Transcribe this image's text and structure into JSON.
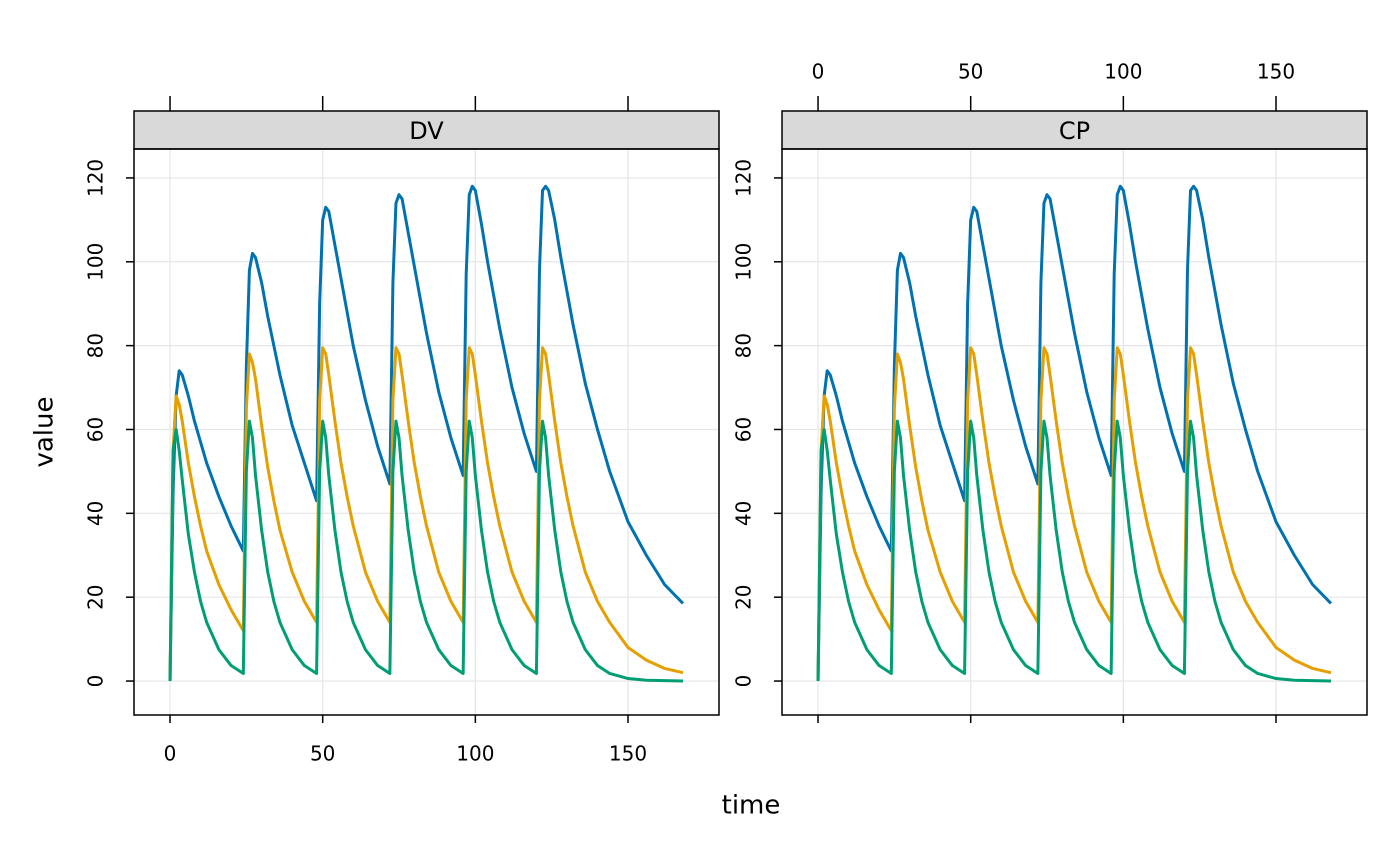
{
  "chart_data": {
    "type": "line",
    "xlabel": "time",
    "ylabel": "value",
    "xlim": [
      -11.8,
      179.8
    ],
    "ylim": [
      -8.1,
      126.9
    ],
    "xticks": [
      0,
      50,
      100,
      150
    ],
    "yticks": [
      0,
      20,
      40,
      60,
      80,
      100,
      120
    ],
    "grid": true,
    "x": [
      0,
      1,
      2,
      3,
      4,
      6,
      8,
      10,
      12,
      16,
      20,
      24,
      25,
      26,
      27,
      28,
      30,
      32,
      34,
      36,
      40,
      44,
      48,
      49,
      50,
      51,
      52,
      54,
      56,
      58,
      60,
      64,
      68,
      72,
      73,
      74,
      75,
      76,
      78,
      80,
      82,
      84,
      88,
      92,
      96,
      97,
      98,
      99,
      100,
      102,
      104,
      106,
      108,
      112,
      116,
      120,
      121,
      122,
      123,
      124,
      126,
      128,
      130,
      132,
      136,
      140,
      144,
      150,
      156,
      162,
      168
    ],
    "panels": [
      {
        "title": "DV",
        "series": [
          {
            "color": "#0072B2",
            "values": [
              0,
              45,
              68,
              74,
              73,
              68,
              62,
              57,
              52,
              44,
              37,
              31,
              75,
              98,
              102,
              101,
              95,
              87,
              80,
              73,
              61,
              52,
              43,
              90,
              110,
              113,
              112,
              104,
              96,
              88,
              80,
              67,
              56,
              47,
              95,
              114,
              116,
              115,
              107,
              99,
              91,
              83,
              69,
              58,
              49,
              97,
              116,
              118,
              117,
              109,
              100,
              92,
              84,
              70,
              59,
              50,
              98,
              117,
              118,
              117,
              110,
              101,
              93,
              85,
              71,
              60,
              50,
              38,
              30,
              23,
              18.5
            ]
          },
          {
            "color": "#E69F00",
            "values": [
              0,
              55,
              68,
              66,
              62,
              52,
              44,
              37,
              31,
              23,
              17,
              12,
              65,
              78,
              76,
              72,
              61,
              51,
              43,
              36,
              26,
              19,
              14,
              67,
              79.5,
              78,
              73,
              62,
              52,
              44,
              37,
              26,
              19,
              14,
              67,
              79.5,
              78,
              73,
              62,
              52,
              44,
              37,
              26,
              19,
              14,
              67,
              79.5,
              78,
              73,
              62,
              52,
              44,
              37,
              26,
              19,
              14,
              67,
              79.5,
              78,
              73,
              62,
              52,
              44,
              37,
              26,
              19,
              14,
              8,
              5,
              3,
              2
            ]
          },
          {
            "color": "#009E73",
            "values": [
              0,
              55,
              60,
              55,
              48,
              35,
              26,
              19,
              14,
              7.5,
              3.7,
              1.8,
              50,
              62,
              58,
              49,
              36,
              26,
              19,
              14,
              7.5,
              3.7,
              1.8,
              50,
              62,
              58,
              49,
              36,
              26,
              19,
              14,
              7.5,
              3.7,
              1.8,
              50,
              62,
              58,
              49,
              36,
              26,
              19,
              14,
              7.5,
              3.7,
              1.8,
              50,
              62,
              58,
              49,
              36,
              26,
              19,
              14,
              7.5,
              3.7,
              1.8,
              50,
              62,
              58,
              49,
              36,
              26,
              19,
              14,
              7.5,
              3.7,
              1.8,
              0.6,
              0.2,
              0.1,
              0
            ]
          }
        ]
      },
      {
        "title": "CP",
        "series": [
          {
            "color": "#0072B2",
            "values": [
              0,
              45,
              68,
              74,
              73,
              68,
              62,
              57,
              52,
              44,
              37,
              31,
              75,
              98,
              102,
              101,
              95,
              87,
              80,
              73,
              61,
              52,
              43,
              90,
              110,
              113,
              112,
              104,
              96,
              88,
              80,
              67,
              56,
              47,
              95,
              114,
              116,
              115,
              107,
              99,
              91,
              83,
              69,
              58,
              49,
              97,
              116,
              118,
              117,
              109,
              100,
              92,
              84,
              70,
              59,
              50,
              98,
              117,
              118,
              117,
              110,
              101,
              93,
              85,
              71,
              60,
              50,
              38,
              30,
              23,
              18.5
            ]
          },
          {
            "color": "#E69F00",
            "values": [
              0,
              55,
              68,
              66,
              62,
              52,
              44,
              37,
              31,
              23,
              17,
              12,
              65,
              78,
              76,
              72,
              61,
              51,
              43,
              36,
              26,
              19,
              14,
              67,
              79.5,
              78,
              73,
              62,
              52,
              44,
              37,
              26,
              19,
              14,
              67,
              79.5,
              78,
              73,
              62,
              52,
              44,
              37,
              26,
              19,
              14,
              67,
              79.5,
              78,
              73,
              62,
              52,
              44,
              37,
              26,
              19,
              14,
              67,
              79.5,
              78,
              73,
              62,
              52,
              44,
              37,
              26,
              19,
              14,
              8,
              5,
              3,
              2
            ]
          },
          {
            "color": "#009E73",
            "values": [
              0,
              55,
              60,
              55,
              48,
              35,
              26,
              19,
              14,
              7.5,
              3.7,
              1.8,
              50,
              62,
              58,
              49,
              36,
              26,
              19,
              14,
              7.5,
              3.7,
              1.8,
              50,
              62,
              58,
              49,
              36,
              26,
              19,
              14,
              7.5,
              3.7,
              1.8,
              50,
              62,
              58,
              49,
              36,
              26,
              19,
              14,
              7.5,
              3.7,
              1.8,
              50,
              62,
              58,
              49,
              36,
              26,
              19,
              14,
              7.5,
              3.7,
              1.8,
              50,
              62,
              58,
              49,
              36,
              26,
              19,
              14,
              7.5,
              3.7,
              1.8,
              0.6,
              0.2,
              0.1,
              0
            ]
          }
        ]
      }
    ]
  }
}
